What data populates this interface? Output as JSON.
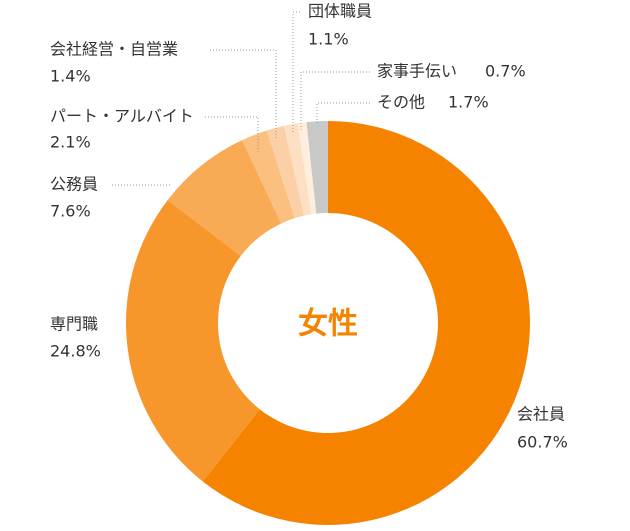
{
  "chart_data": {
    "type": "pie",
    "donut": true,
    "center_label": "女性",
    "categories": [
      "会社員",
      "専門職",
      "公務員",
      "パート・アルバイト",
      "会社経営・自営業",
      "団体職員",
      "家事手伝い",
      "その他"
    ],
    "values": [
      60.7,
      24.8,
      7.6,
      2.1,
      1.4,
      1.1,
      0.7,
      1.7
    ],
    "value_labels": [
      "60.7%",
      "24.8%",
      "7.6%",
      "2.1%",
      "1.4%",
      "1.1%",
      "0.7%",
      "1.7%"
    ],
    "colors": [
      "#f58300",
      "#f7962b",
      "#f9aa55",
      "#fbbf80",
      "#fcd0a6",
      "#fde0c4",
      "#feeedd",
      "#c8c8c8"
    ]
  }
}
